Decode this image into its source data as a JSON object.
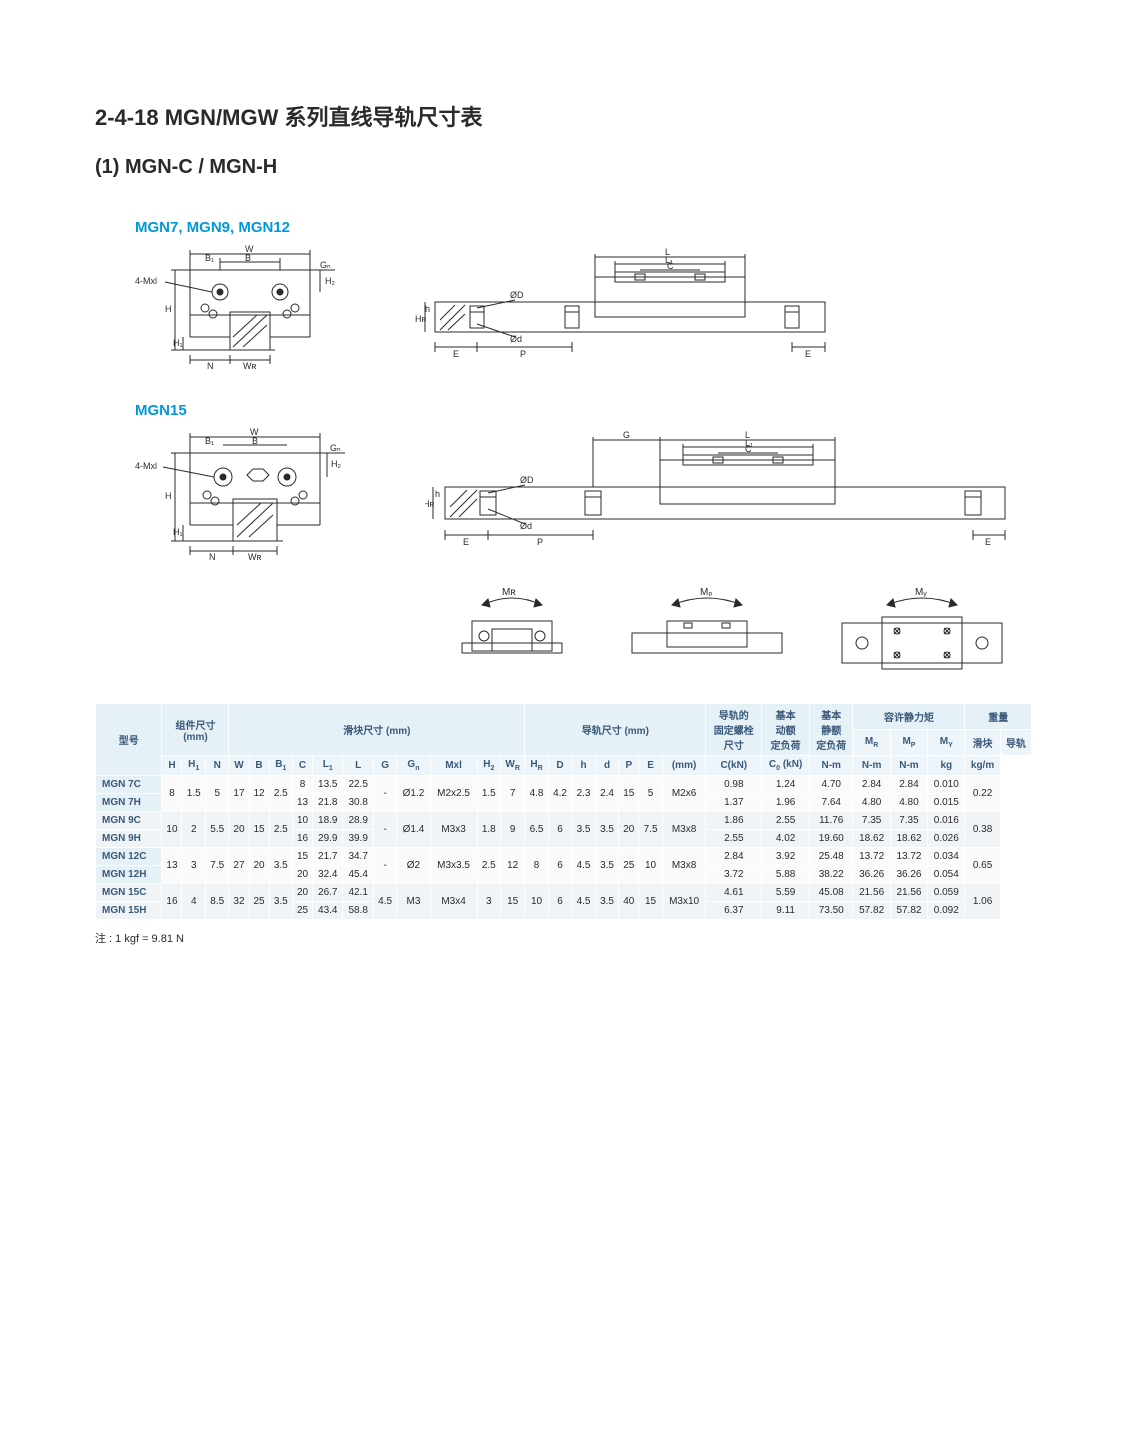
{
  "title_main": "2-4-18 MGN/MGW 系列直线导轨尺寸表",
  "title_sub": "(1) MGN-C / MGN-H",
  "label_d1": "MGN7, MGN9, MGN12",
  "label_d2": "MGN15",
  "note": "注 : 1 kgf = 9.81 N",
  "colors": {
    "accent": "#0099d8",
    "head_bg": "#e6f0f7",
    "head_fg": "#3a5a7a",
    "row_alt": "#f0f4f7",
    "stroke": "#2a2a2a"
  },
  "diagram": {
    "dim_labels": [
      "W",
      "B",
      "B₁",
      "Gₙ",
      "4-Mxl",
      "H",
      "H₂",
      "H₁",
      "N",
      "Wʀ",
      "L",
      "L₁",
      "C",
      "ØD",
      "Ød",
      "Hʀ",
      "E",
      "P",
      "G",
      "h",
      "Mʀ",
      "Mₚ",
      "Mᵧ"
    ]
  },
  "table": {
    "header_groups": [
      {
        "label": "型号",
        "cols": 1
      },
      {
        "label": "组件尺寸 (mm)",
        "cols": 3
      },
      {
        "label": "滑块尺寸 (mm)",
        "cols": 11
      },
      {
        "label": "导轨尺寸 (mm)",
        "cols": 7
      },
      {
        "label": "导轨的固定螺栓尺寸",
        "cols": 1
      },
      {
        "label": "基本动额定负荷",
        "cols": 1
      },
      {
        "label": "基本静额定负荷",
        "cols": 1
      },
      {
        "label": "容许静力矩",
        "cols": 3
      },
      {
        "label": "重量",
        "cols": 2
      }
    ],
    "sub_headers": [
      "",
      "H",
      "H₁",
      "N",
      "W",
      "B",
      "B₁",
      "C",
      "L₁",
      "L",
      "G",
      "Gₙ",
      "Mxl",
      "H₂",
      "Wʀ",
      "Hʀ",
      "D",
      "h",
      "d",
      "P",
      "E",
      "(mm)",
      "C(kN)",
      "C₀ (kN)",
      "Mʀ",
      "Mₚ",
      "Mᵧ",
      "滑块",
      "导轨"
    ],
    "unit_row": [
      "",
      "",
      "",
      "",
      "",
      "",
      "",
      "",
      "",
      "",
      "",
      "",
      "",
      "",
      "",
      "",
      "",
      "",
      "",
      "",
      "",
      "",
      "",
      "",
      "N-m",
      "N-m",
      "N-m",
      "kg",
      "kg/m"
    ],
    "rows": [
      {
        "model": "MGN 7C",
        "cells": [
          "8",
          "1.5",
          "5",
          "17",
          "12",
          "2.5",
          "8",
          "13.5",
          "22.5",
          "-",
          "Ø1.2",
          "M2x2.5",
          "1.5",
          "7",
          "4.8",
          "4.2",
          "2.3",
          "2.4",
          "15",
          "5",
          "M2x6",
          "0.98",
          "1.24",
          "4.70",
          "2.84",
          "2.84",
          "0.010",
          "0.22"
        ],
        "merge_start": true
      },
      {
        "model": "MGN 7H",
        "cells": [
          "",
          "",
          "",
          "",
          "",
          "",
          "13",
          "21.8",
          "30.8",
          "",
          "",
          "",
          "",
          "",
          "",
          "",
          "",
          "",
          "",
          "",
          "",
          "1.37",
          "1.96",
          "7.64",
          "4.80",
          "4.80",
          "0.015",
          ""
        ]
      },
      {
        "model": "MGN 9C",
        "cells": [
          "10",
          "2",
          "5.5",
          "20",
          "15",
          "2.5",
          "10",
          "18.9",
          "28.9",
          "-",
          "Ø1.4",
          "M3x3",
          "1.8",
          "9",
          "6.5",
          "6",
          "3.5",
          "3.5",
          "20",
          "7.5",
          "M3x8",
          "1.86",
          "2.55",
          "11.76",
          "7.35",
          "7.35",
          "0.016",
          "0.38"
        ],
        "merge_start": true
      },
      {
        "model": "MGN 9H",
        "cells": [
          "",
          "",
          "",
          "",
          "",
          "",
          "16",
          "29.9",
          "39.9",
          "",
          "",
          "",
          "",
          "",
          "",
          "",
          "",
          "",
          "",
          "",
          "",
          "2.55",
          "4.02",
          "19.60",
          "18.62",
          "18.62",
          "0.026",
          ""
        ]
      },
      {
        "model": "MGN 12C",
        "cells": [
          "13",
          "3",
          "7.5",
          "27",
          "20",
          "3.5",
          "15",
          "21.7",
          "34.7",
          "-",
          "Ø2",
          "M3x3.5",
          "2.5",
          "12",
          "8",
          "6",
          "4.5",
          "3.5",
          "25",
          "10",
          "M3x8",
          "2.84",
          "3.92",
          "25.48",
          "13.72",
          "13.72",
          "0.034",
          "0.65"
        ],
        "merge_start": true
      },
      {
        "model": "MGN 12H",
        "cells": [
          "",
          "",
          "",
          "",
          "",
          "",
          "20",
          "32.4",
          "45.4",
          "",
          "",
          "",
          "",
          "",
          "",
          "",
          "",
          "",
          "",
          "",
          "",
          "3.72",
          "5.88",
          "38.22",
          "36.26",
          "36.26",
          "0.054",
          ""
        ]
      },
      {
        "model": "MGN 15C",
        "cells": [
          "16",
          "4",
          "8.5",
          "32",
          "25",
          "3.5",
          "20",
          "26.7",
          "42.1",
          "4.5",
          "M3",
          "M3x4",
          "3",
          "15",
          "10",
          "6",
          "4.5",
          "3.5",
          "40",
          "15",
          "M3x10",
          "4.61",
          "5.59",
          "45.08",
          "21.56",
          "21.56",
          "0.059",
          "1.06"
        ],
        "merge_start": true
      },
      {
        "model": "MGN 15H",
        "cells": [
          "",
          "",
          "",
          "",
          "",
          "",
          "25",
          "43.4",
          "58.8",
          "",
          "",
          "",
          "",
          "",
          "",
          "",
          "",
          "",
          "",
          "",
          "",
          "6.37",
          "9.11",
          "73.50",
          "57.82",
          "57.82",
          "0.092",
          ""
        ]
      }
    ]
  }
}
